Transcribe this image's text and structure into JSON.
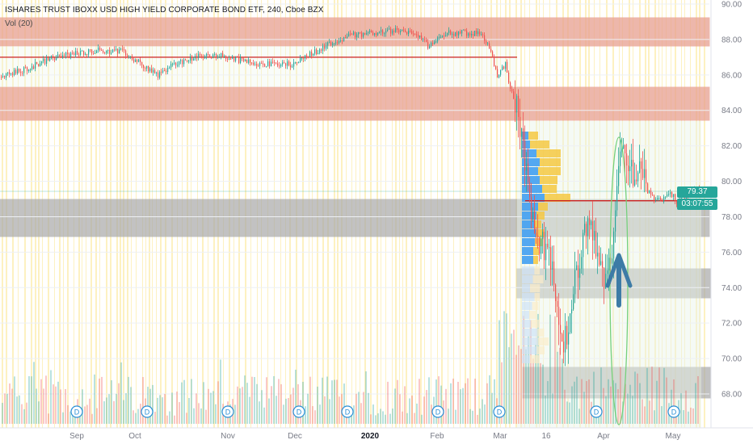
{
  "header": {
    "title": "ISHARES TRUST IBOXX USD HIGH YIELD CORPORATE BOND ETF, 240, Cboe BZX",
    "volume_label": "Vol (20)"
  },
  "price_tag": {
    "value": "79.37",
    "color": "#26a69a"
  },
  "time_tag": {
    "value": "03:07:55",
    "color": "#26a69a"
  },
  "colors": {
    "up": "#26a69a",
    "down": "#ef5350",
    "resistance_zone": "#e8a090",
    "support_zone": "#a9a9a9",
    "yellow_band": "#fdefb6",
    "volume_profile_blue": "#4aa3f0",
    "volume_profile_yellow": "#f5c842",
    "arrow": "#3d7ba6",
    "ellipse": "#76d07a",
    "horizontal_line": "#cc1f1f"
  },
  "chart_data": {
    "type": "candlestick",
    "title": "ISHARES TRUST IBOXX USD HIGH YIELD CORPORATE BOND ETF, 240, Cboe BZX",
    "symbol_timeframe": "240",
    "exchange": "Cboe BZX",
    "ylim": [
      66.6,
      90.6
    ],
    "y_ticks": [
      "90.00",
      "88.00",
      "86.00",
      "84.00",
      "82.00",
      "80.00",
      "78.00",
      "76.00",
      "74.00",
      "72.00",
      "70.00",
      "68.00"
    ],
    "x_ticks": [
      "Sep",
      "Oct",
      "Nov",
      "Dec",
      "2020",
      "Feb",
      "Mar",
      "16",
      "Apr",
      "May"
    ],
    "last_price": 79.37,
    "countdown": "03:07:55",
    "approx_close_path": [
      {
        "x": "Aug 2019",
        "close": 86.0
      },
      {
        "x": "Sep 2019",
        "close": 87.1
      },
      {
        "x": "Sep 2019 late",
        "close": 87.3
      },
      {
        "x": "Oct 2019",
        "close": 86.1
      },
      {
        "x": "Oct 2019 late",
        "close": 87.0
      },
      {
        "x": "Nov 2019",
        "close": 86.9
      },
      {
        "x": "Dec 2019",
        "close": 86.6
      },
      {
        "x": "Dec 2019 late",
        "close": 87.5
      },
      {
        "x": "2020",
        "close": 88.4
      },
      {
        "x": "Jan 2020 late",
        "close": 88.1
      },
      {
        "x": "Feb 2020",
        "close": 88.3
      },
      {
        "x": "Feb 2020 late",
        "close": 86.0
      },
      {
        "x": "Mar 2020",
        "close": 82.0
      },
      {
        "x": "Mar 16",
        "close": 76.0
      },
      {
        "x": "Mar 20",
        "close": 70.0
      },
      {
        "x": "Apr 2020",
        "close": 77.0
      },
      {
        "x": "Apr 2020 mid",
        "close": 82.4
      },
      {
        "x": "Apr 2020 late",
        "close": 80.0
      },
      {
        "x": "May 2020",
        "close": 79.0
      },
      {
        "x": "May 2020 latest",
        "close": 79.37
      }
    ],
    "zones": [
      {
        "kind": "resistance",
        "y_from": 87.6,
        "y_to": 89.1
      },
      {
        "kind": "resistance",
        "y_from": 83.5,
        "y_to": 85.3
      },
      {
        "kind": "support",
        "y_from": 76.9,
        "y_to": 79.0
      },
      {
        "kind": "support",
        "y_from": 73.4,
        "y_to": 75.0
      },
      {
        "kind": "support",
        "y_from": 67.7,
        "y_to": 69.4
      }
    ],
    "lines": [
      {
        "kind": "horizontal",
        "y": 87.0,
        "span": "Aug 2019 - Mar 2020"
      },
      {
        "kind": "horizontal",
        "y": 78.9,
        "span": "Mar 2020 - May 2020"
      }
    ],
    "annotations": [
      {
        "kind": "arrow_up",
        "label": ""
      },
      {
        "kind": "ellipse",
        "label": ""
      }
    ],
    "dividend_markers": [
      "D",
      "D",
      "D",
      "D",
      "D",
      "D",
      "D",
      "D",
      "D"
    ],
    "legend": [],
    "grid": true
  }
}
